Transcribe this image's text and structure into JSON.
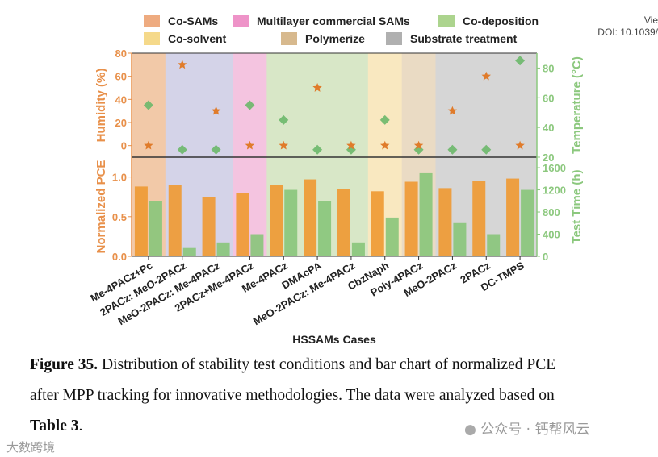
{
  "header": {
    "view_fragment": "Vie",
    "doi": "DOI: 10.1039/"
  },
  "chart_data": {
    "type": "bar",
    "xlabel": "HSSAMs Cases",
    "categories": [
      "Me-4PACz+Pc",
      "2PACz: MeO-2PACz",
      "MeO-2PACz: Me-4PACz",
      "2PACz+Me-4PACz",
      "Me-4PACz",
      "DMAcPA",
      "MeO-2PACz: Me-4PACz",
      "CbzNaph",
      "Poly-4PACz",
      "MeO-2PACz",
      "2PACz",
      "DC-TMPS"
    ],
    "groups": [
      0,
      1,
      1,
      2,
      3,
      3,
      3,
      4,
      5,
      6,
      6,
      6
    ],
    "group_colors": [
      "#f2c9a8",
      "#d4d3e8",
      "#f4c4e0",
      "#d8e7c7",
      "#f9e8c0",
      "#eadbc4",
      "#d6d6d6"
    ],
    "legend": [
      {
        "label": "Co-SAMs",
        "color": "#eeab80"
      },
      {
        "label": "Multilayer commercial SAMs",
        "color": "#ee93c8"
      },
      {
        "label": "Co-deposition",
        "color": "#acd48e"
      },
      {
        "label": "Co-solvent",
        "color": "#f5d98a"
      },
      {
        "label": "Polymerize",
        "color": "#d7b98e"
      },
      {
        "label": "Substrate treatment",
        "color": "#b0b0b0"
      }
    ],
    "top_panel": {
      "type": "scatter",
      "ylabel_left": "Humidity (%)",
      "ylim_left": [
        -10,
        80
      ],
      "yticks_left": [
        "80",
        "60",
        "40",
        "20",
        "0"
      ],
      "ylabel_right": "Temperature (°C)",
      "ylim_right": [
        20,
        90
      ],
      "yticks_right": [
        "80",
        "60",
        "40",
        "20"
      ],
      "series": [
        {
          "name": "Humidity",
          "marker": "star",
          "color": "#e07b2a",
          "values": [
            0,
            70,
            30,
            0,
            0,
            50,
            0,
            0,
            0,
            30,
            60,
            0
          ]
        },
        {
          "name": "Temperature",
          "marker": "diamond",
          "color": "#6cb86a",
          "values": [
            55,
            25,
            25,
            55,
            45,
            25,
            25,
            45,
            25,
            25,
            25,
            85
          ]
        }
      ]
    },
    "bottom_panel": {
      "type": "bar",
      "ylabel_left": "Normalized PCE",
      "ylim_left": [
        0,
        1.25
      ],
      "yticks_left": [
        "0.0",
        "0.5",
        "1.0"
      ],
      "ylabel_right": "Test Time (h)",
      "ylim_right": [
        0,
        1790
      ],
      "yticks_right": [
        "0",
        "400",
        "800",
        "1200",
        "1600"
      ],
      "series": [
        {
          "name": "Normalized PCE",
          "color": "#ef9a34",
          "values": [
            0.88,
            0.9,
            0.75,
            0.8,
            0.9,
            0.97,
            0.85,
            0.82,
            0.94,
            0.86,
            0.95,
            0.98
          ]
        },
        {
          "name": "Test Time",
          "color": "#88c57a",
          "values": [
            1000,
            150,
            250,
            400,
            1200,
            1000,
            250,
            700,
            1500,
            600,
            400,
            1200
          ]
        }
      ]
    }
  },
  "caption": {
    "figure_label": "Figure 35.",
    "line1": " Distribution of stability test conditions and bar chart of normalized PCE",
    "line2": "after MPP tracking for innovative methodologies. The data were analyzed based on",
    "table_ref": "Table 3",
    "period": "."
  },
  "watermarks": {
    "left": "大数跨境",
    "right": "公众号 · 钙帮风云"
  }
}
